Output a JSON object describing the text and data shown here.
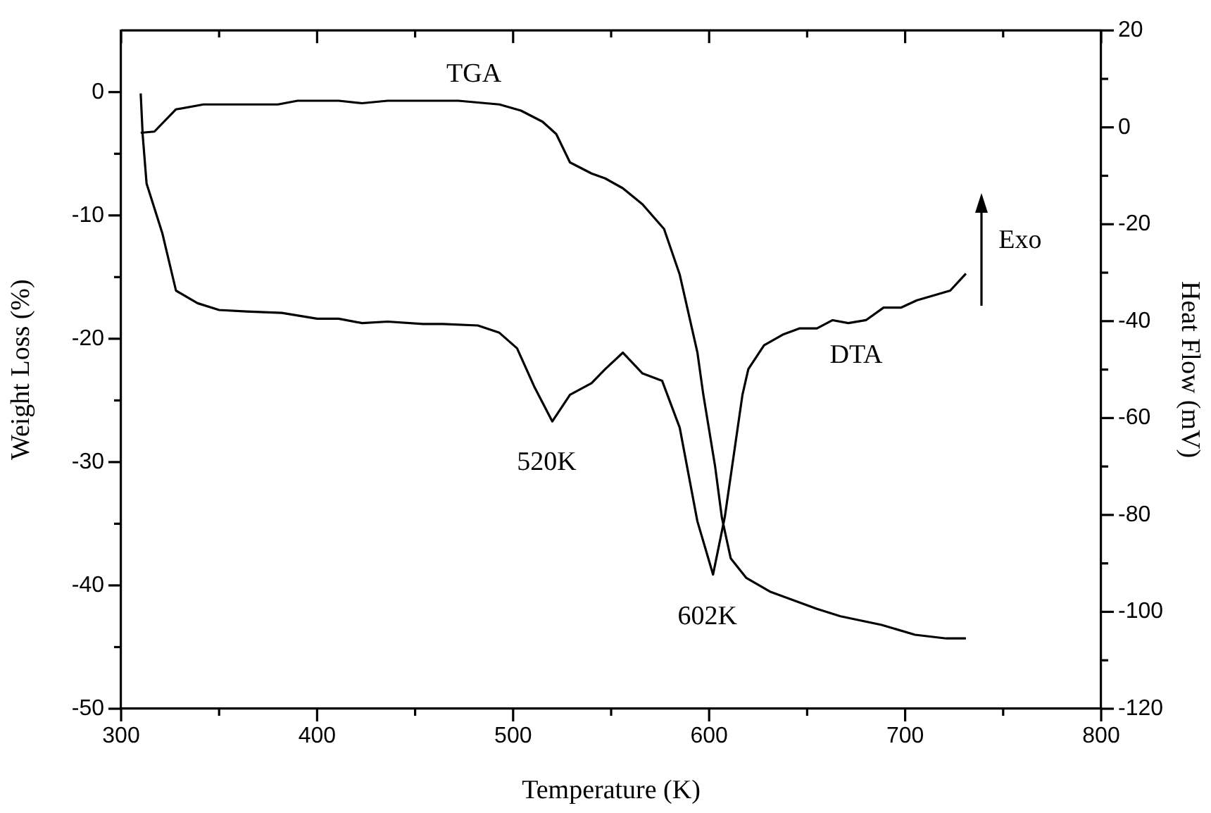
{
  "chart_data": {
    "type": "line",
    "xlabel": "Temperature (K)",
    "ylabel": "Weight Loss (%)",
    "y2label": "Heat Flow (mV)",
    "xlim": [
      300,
      800
    ],
    "xticks": [
      300,
      {
        "value": 350,
        "label": null
      },
      400,
      {
        "value": 450,
        "label": null
      },
      500,
      {
        "value": 550,
        "label": null
      },
      600,
      {
        "value": 650,
        "label": null
      },
      700,
      {
        "value": 750,
        "label": null
      },
      800
    ],
    "ylim": [
      -50,
      5
    ],
    "yticks": [
      -50,
      {
        "value": -45,
        "label": null
      },
      -40,
      {
        "value": -35,
        "label": null
      },
      -30,
      {
        "value": -25,
        "label": null
      },
      -20,
      {
        "value": -15,
        "label": null
      },
      -10,
      {
        "value": -5,
        "label": null
      },
      0
    ],
    "y2lim": [
      -120,
      20
    ],
    "y2ticks": [
      -120,
      {
        "value": -110,
        "label": null
      },
      -100,
      {
        "value": -90,
        "label": null
      },
      -80,
      {
        "value": -70,
        "label": null
      },
      -60,
      {
        "value": -50,
        "label": null
      },
      -40,
      {
        "value": -30,
        "label": null
      },
      -20,
      {
        "value": -10,
        "label": null
      },
      0,
      {
        "value": 10,
        "label": null
      },
      20
    ],
    "grid": false,
    "marker": "none",
    "line_style": "solid",
    "series": [
      {
        "name": "TGA",
        "color": "#000000",
        "x": [
          310,
          317,
          328,
          342,
          380,
          390,
          411,
          423,
          436,
          472,
          493,
          504,
          515,
          522,
          529,
          540,
          547,
          556,
          566,
          577,
          585,
          594,
          597,
          603,
          606.5,
          611,
          619,
          631,
          655,
          667,
          688,
          705,
          721,
          731
        ],
        "values": [
          -3.3,
          -3.2,
          -1.4,
          -1.0,
          -1.0,
          -0.7,
          -0.7,
          -0.9,
          -0.7,
          -0.7,
          -1.0,
          -1.5,
          -2.4,
          -3.4,
          -5.7,
          -6.6,
          -7.0,
          -7.8,
          -9.1,
          -11.1,
          -14.8,
          -21.1,
          -24.5,
          -30.3,
          -34.5,
          -37.8,
          -39.4,
          -40.5,
          -41.9,
          -42.5,
          -43.2,
          -44.0,
          -44.3,
          -44.3
        ]
      },
      {
        "name": "DTA",
        "color": "#000000",
        "axis": "y2",
        "x": [
          310,
          311,
          313,
          321,
          328,
          339,
          350,
          364,
          382,
          400,
          411,
          423,
          436,
          454,
          464,
          482,
          493,
          502,
          511,
          520,
          529,
          540,
          547,
          556,
          566,
          576,
          585,
          594,
          602,
          608,
          617,
          620,
          628,
          638,
          646,
          655,
          663,
          671,
          680,
          689,
          698,
          706,
          723,
          731
        ],
        "values": [
          7.0,
          -1.5,
          -11.6,
          -21.8,
          -33.7,
          -36.3,
          -37.7,
          -38.0,
          -38.3,
          -39.5,
          -39.5,
          -40.4,
          -40.1,
          -40.6,
          -40.6,
          -40.9,
          -42.4,
          -45.6,
          -53.7,
          -60.7,
          -55.2,
          -52.8,
          -49.9,
          -46.5,
          -50.8,
          -52.3,
          -62.0,
          -81.3,
          -92.3,
          -80.4,
          -55.2,
          -49.9,
          -45.0,
          -42.7,
          -41.5,
          -41.5,
          -39.8,
          -40.4,
          -39.8,
          -37.2,
          -37.2,
          -35.7,
          -33.7,
          -30.2
        ]
      }
    ],
    "annotations": [
      {
        "text": "520K",
        "x": 520,
        "y": -26.7
      },
      {
        "text": "602K",
        "x": 602,
        "y": -39.2
      },
      "Exo"
    ]
  }
}
